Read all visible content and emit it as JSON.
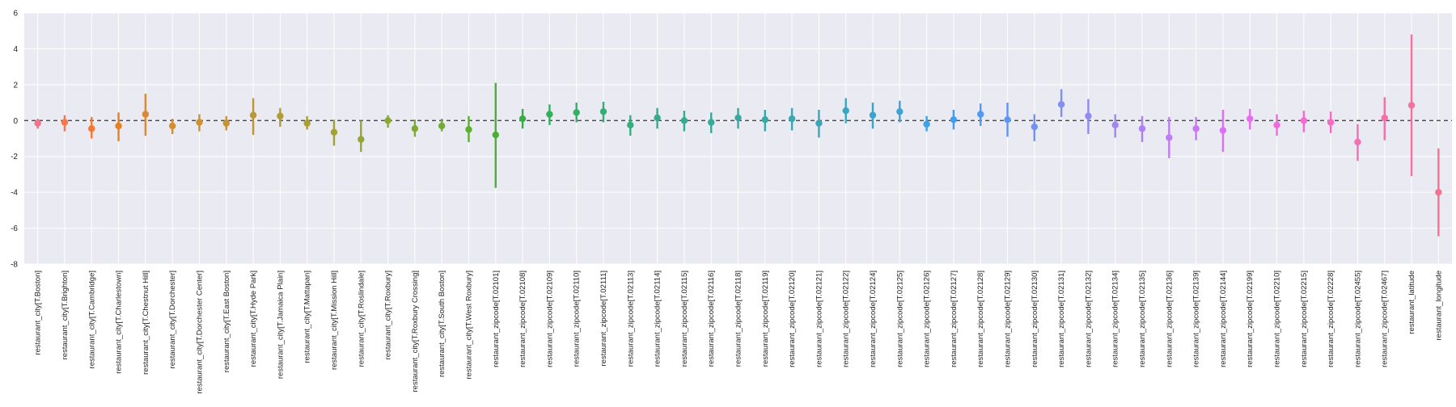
{
  "chart_data": {
    "type": "scatter",
    "style": "point estimates with vertical error bars",
    "ylim": [
      -8,
      6
    ],
    "yticks": [
      6,
      4,
      2,
      0,
      -2,
      -4,
      -6,
      -8
    ],
    "reference_line": 0,
    "grid": true,
    "background": "#EAEAF2",
    "points": [
      {
        "label": "restaurant_city[T.Boston]",
        "y": -0.15,
        "lo": -0.45,
        "hi": 0.1,
        "color": "#f77189"
      },
      {
        "label": "restaurant_city[T.Brighton]",
        "y": -0.1,
        "lo": -0.6,
        "hi": 0.3,
        "color": "#f7754f"
      },
      {
        "label": "restaurant_city[T.Cambridge]",
        "y": -0.45,
        "lo": -1.0,
        "hi": 0.2,
        "color": "#f37932"
      },
      {
        "label": "restaurant_city[T.Charlestown]",
        "y": -0.3,
        "lo": -1.15,
        "hi": 0.45,
        "color": "#e8811b"
      },
      {
        "label": "restaurant_city[T.Chestnut Hill]",
        "y": 0.35,
        "lo": -0.85,
        "hi": 1.5,
        "color": "#dc8932"
      },
      {
        "label": "restaurant_city[T.Dorchester]",
        "y": -0.3,
        "lo": -0.75,
        "hi": 0.1,
        "color": "#d58c32"
      },
      {
        "label": "restaurant_city[T.Dorchester Center]",
        "y": -0.1,
        "lo": -0.6,
        "hi": 0.35,
        "color": "#cf9032"
      },
      {
        "label": "restaurant_city[T.East Boston]",
        "y": -0.15,
        "lo": -0.55,
        "hi": 0.25,
        "color": "#c89332"
      },
      {
        "label": "restaurant_city[T.Hyde Park]",
        "y": 0.3,
        "lo": -0.8,
        "hi": 1.25,
        "color": "#bb9832"
      },
      {
        "label": "restaurant_city[T.Jamaica Plain]",
        "y": 0.25,
        "lo": -0.35,
        "hi": 0.7,
        "color": "#b29c32"
      },
      {
        "label": "restaurant_city[T.Mattapan]",
        "y": -0.15,
        "lo": -0.5,
        "hi": 0.25,
        "color": "#aa9f32"
      },
      {
        "label": "restaurant_city[T.Mission Hill]",
        "y": -0.65,
        "lo": -1.4,
        "hi": 0.05,
        "color": "#a1a232"
      },
      {
        "label": "restaurant_city[T.Roslindale]",
        "y": -1.05,
        "lo": -1.75,
        "hi": 0.0,
        "color": "#97a532"
      },
      {
        "label": "restaurant_city[T.Roxbury]",
        "y": 0.0,
        "lo": -0.4,
        "hi": 0.3,
        "color": "#8ba832"
      },
      {
        "label": "restaurant_city[T.Roxbury Crossing]",
        "y": -0.45,
        "lo": -0.9,
        "hi": 0.05,
        "color": "#7eaa32"
      },
      {
        "label": "restaurant_city[T.South Boston]",
        "y": -0.3,
        "lo": -0.6,
        "hi": 0.1,
        "color": "#6ead32"
      },
      {
        "label": "restaurant_city[T.West Roxbury]",
        "y": -0.5,
        "lo": -1.2,
        "hi": 0.25,
        "color": "#5db032"
      },
      {
        "label": "restaurant_zipcode[T.02101]",
        "y": -0.8,
        "lo": -3.75,
        "hi": 2.1,
        "color": "#4aaf35"
      },
      {
        "label": "restaurant_zipcode[T.02108]",
        "y": 0.1,
        "lo": -0.45,
        "hi": 0.65,
        "color": "#35ae46"
      },
      {
        "label": "restaurant_zipcode[T.02109]",
        "y": 0.35,
        "lo": -0.25,
        "hi": 0.9,
        "color": "#33b05a"
      },
      {
        "label": "restaurant_zipcode[T.02110]",
        "y": 0.45,
        "lo": -0.1,
        "hi": 1.0,
        "color": "#34af67"
      },
      {
        "label": "restaurant_zipcode[T.02111]",
        "y": 0.5,
        "lo": -0.1,
        "hi": 1.05,
        "color": "#34ae74"
      },
      {
        "label": "restaurant_zipcode[T.02113]",
        "y": -0.25,
        "lo": -0.85,
        "hi": 0.3,
        "color": "#35ad7f"
      },
      {
        "label": "restaurant_zipcode[T.02114]",
        "y": 0.15,
        "lo": -0.45,
        "hi": 0.7,
        "color": "#35ac88"
      },
      {
        "label": "restaurant_zipcode[T.02115]",
        "y": 0.0,
        "lo": -0.6,
        "hi": 0.55,
        "color": "#36ab91"
      },
      {
        "label": "restaurant_zipcode[T.02116]",
        "y": -0.1,
        "lo": -0.7,
        "hi": 0.45,
        "color": "#36aa99"
      },
      {
        "label": "restaurant_zipcode[T.02118]",
        "y": 0.15,
        "lo": -0.45,
        "hi": 0.7,
        "color": "#37a9a1"
      },
      {
        "label": "restaurant_zipcode[T.02119]",
        "y": 0.05,
        "lo": -0.6,
        "hi": 0.6,
        "color": "#37a9a9"
      },
      {
        "label": "restaurant_zipcode[T.02120]",
        "y": 0.1,
        "lo": -0.55,
        "hi": 0.7,
        "color": "#38a8b1"
      },
      {
        "label": "restaurant_zipcode[T.02121]",
        "y": -0.15,
        "lo": -0.95,
        "hi": 0.6,
        "color": "#38a7b9"
      },
      {
        "label": "restaurant_zipcode[T.02122]",
        "y": 0.55,
        "lo": -0.15,
        "hi": 1.25,
        "color": "#39a6c2"
      },
      {
        "label": "restaurant_zipcode[T.02124]",
        "y": 0.3,
        "lo": -0.45,
        "hi": 1.0,
        "color": "#3aa5cc"
      },
      {
        "label": "restaurant_zipcode[T.02125]",
        "y": 0.5,
        "lo": -0.1,
        "hi": 1.1,
        "color": "#3ba3d8"
      },
      {
        "label": "restaurant_zipcode[T.02126]",
        "y": -0.2,
        "lo": -0.6,
        "hi": 0.25,
        "color": "#3ca1e5"
      },
      {
        "label": "restaurant_zipcode[T.02127]",
        "y": 0.05,
        "lo": -0.5,
        "hi": 0.6,
        "color": "#3f9ef1"
      },
      {
        "label": "restaurant_zipcode[T.02128]",
        "y": 0.35,
        "lo": -0.3,
        "hi": 0.95,
        "color": "#4e9af4"
      },
      {
        "label": "restaurant_zipcode[T.02129]",
        "y": 0.05,
        "lo": -0.9,
        "hi": 1.0,
        "color": "#5f96f4"
      },
      {
        "label": "restaurant_zipcode[T.02130]",
        "y": -0.35,
        "lo": -1.15,
        "hi": 0.35,
        "color": "#7092f4"
      },
      {
        "label": "restaurant_zipcode[T.02131]",
        "y": 0.9,
        "lo": 0.2,
        "hi": 1.75,
        "color": "#818ef4"
      },
      {
        "label": "restaurant_zipcode[T.02132]",
        "y": 0.25,
        "lo": -0.75,
        "hi": 1.2,
        "color": "#918af4"
      },
      {
        "label": "restaurant_zipcode[T.02134]",
        "y": -0.25,
        "lo": -0.95,
        "hi": 0.35,
        "color": "#a086f4"
      },
      {
        "label": "restaurant_zipcode[T.02135]",
        "y": -0.45,
        "lo": -1.2,
        "hi": 0.25,
        "color": "#b081f4"
      },
      {
        "label": "restaurant_zipcode[T.02136]",
        "y": -0.95,
        "lo": -2.1,
        "hi": 0.2,
        "color": "#bf7cf4"
      },
      {
        "label": "restaurant_zipcode[T.02139]",
        "y": -0.45,
        "lo": -1.1,
        "hi": 0.2,
        "color": "#cc78f4"
      },
      {
        "label": "restaurant_zipcode[T.02144]",
        "y": -0.55,
        "lo": -1.75,
        "hi": 0.6,
        "color": "#da72f3"
      },
      {
        "label": "restaurant_zipcode[T.02199]",
        "y": 0.1,
        "lo": -0.5,
        "hi": 0.65,
        "color": "#e56ef0"
      },
      {
        "label": "restaurant_zipcode[T.02210]",
        "y": -0.25,
        "lo": -0.85,
        "hi": 0.35,
        "color": "#ef6be0"
      },
      {
        "label": "restaurant_zipcode[T.02215]",
        "y": 0.0,
        "lo": -0.65,
        "hi": 0.55,
        "color": "#f46bd2"
      },
      {
        "label": "restaurant_zipcode[T.02228]",
        "y": -0.1,
        "lo": -0.7,
        "hi": 0.5,
        "color": "#f56dc3"
      },
      {
        "label": "restaurant_zipcode[T.02455]",
        "y": -1.2,
        "lo": -2.25,
        "hi": -0.2,
        "color": "#f56fb5"
      },
      {
        "label": "restaurant_zipcode[T.02467]",
        "y": 0.15,
        "lo": -1.1,
        "hi": 1.3,
        "color": "#f570a8"
      },
      {
        "label": "restaurant_latitude",
        "y": 0.85,
        "lo": -3.1,
        "hi": 4.8,
        "color": "#f6719b"
      },
      {
        "label": "restaurant_longitude",
        "y": -4.0,
        "lo": -6.45,
        "hi": -1.55,
        "color": "#f7728e"
      }
    ]
  }
}
